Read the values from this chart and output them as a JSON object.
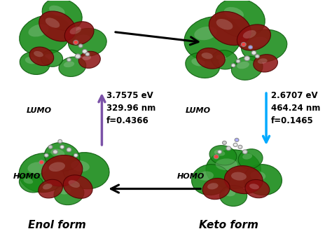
{
  "background_color": "#ffffff",
  "enol_ev": "3.7575 eV",
  "enol_nm": "329.96 nm",
  "enol_f": "f=0.4366",
  "keto_ev": "2.6707 eV",
  "keto_nm": "464.24 nm",
  "keto_f": "f=0.1465",
  "purple_color": "#7B52A8",
  "cyan_color": "#00AAFF",
  "black_color": "#000000",
  "enol_form_label": "Enol form",
  "keto_form_label": "Keto form",
  "lumo_label": "LUMO",
  "homo_label": "HOMO",
  "orbital_green": "#1A8C1A",
  "orbital_darkred": "#8B1010",
  "green_edge": "#0A5A0A",
  "red_edge": "#500000"
}
